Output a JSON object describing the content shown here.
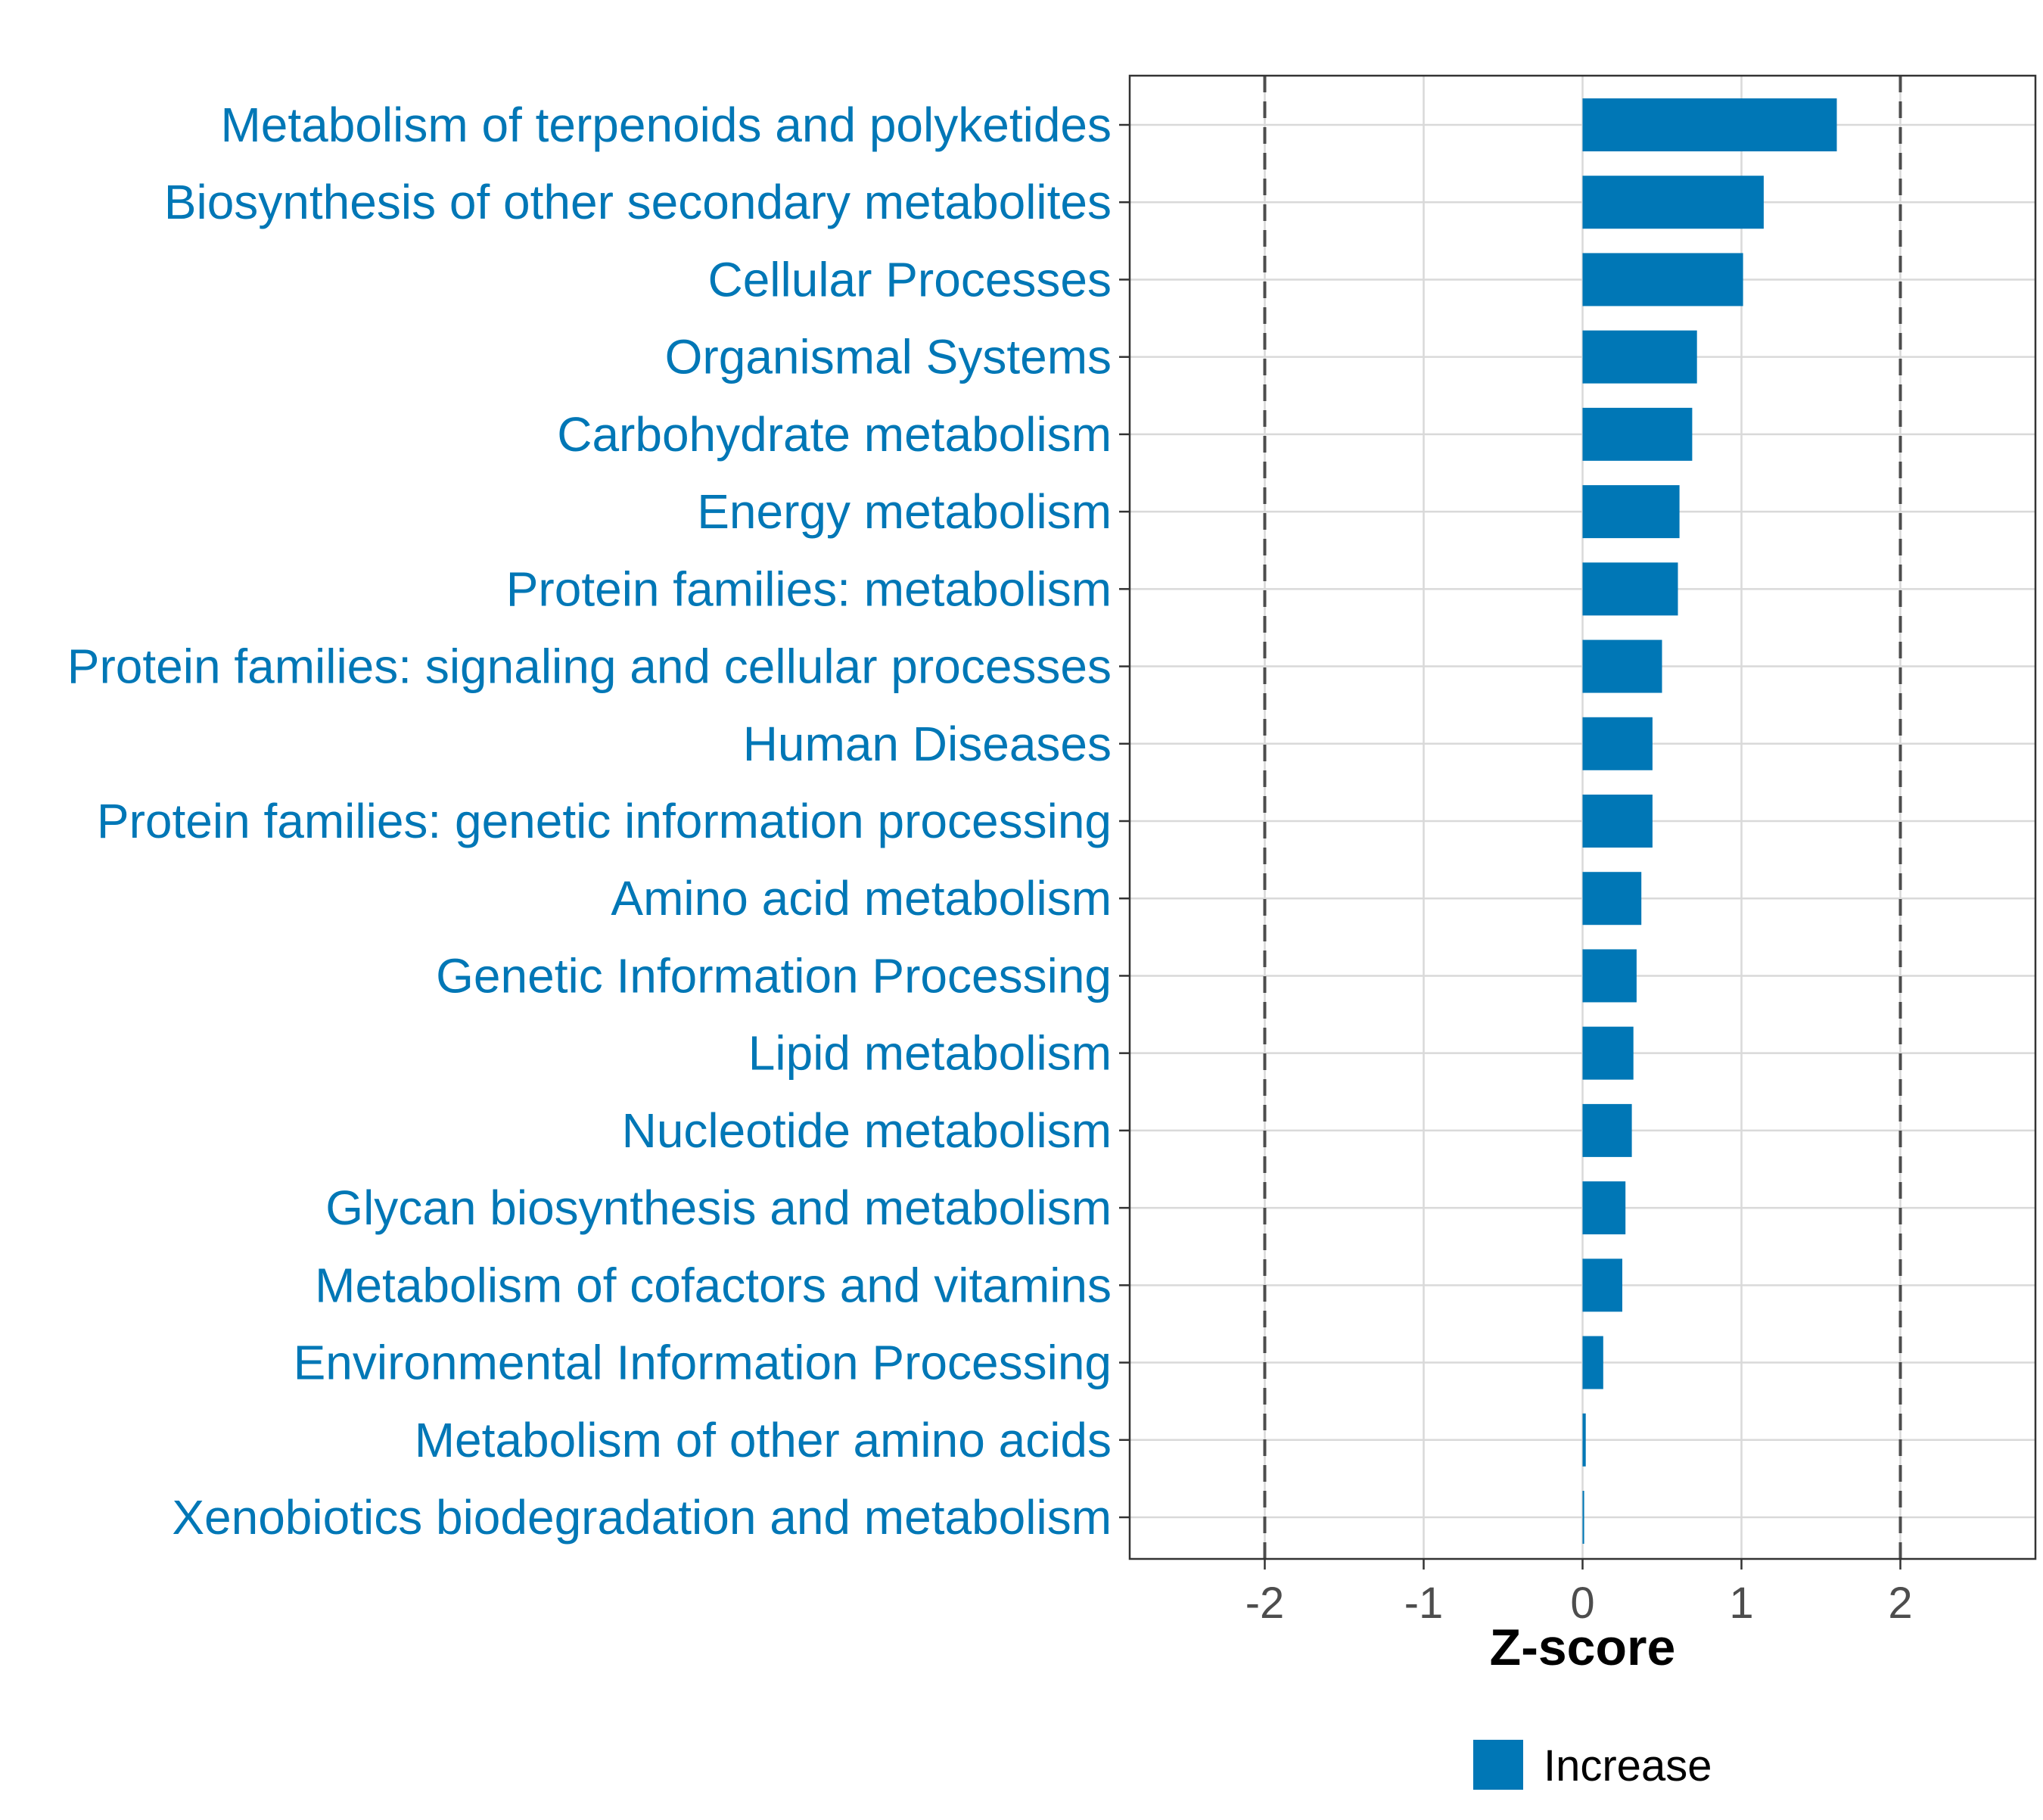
{
  "chart_data": {
    "type": "bar",
    "orientation": "horizontal",
    "categories": [
      "Metabolism of terpenoids and polyketides",
      "Biosynthesis of other secondary metabolites",
      "Cellular Processes",
      "Organismal Systems",
      "Carbohydrate metabolism",
      "Energy metabolism",
      "Protein families: metabolism",
      "Protein families: signaling and cellular processes",
      "Human Diseases",
      "Protein families: genetic information processing",
      "Amino acid metabolism",
      "Genetic Information Processing",
      "Lipid metabolism",
      "Nucleotide metabolism",
      "Glycan biosynthesis and metabolism",
      "Metabolism of cofactors and vitamins",
      "Environmental Information Processing",
      "Metabolism of other amino acids",
      "Xenobiotics biodegradation and metabolism"
    ],
    "values": [
      1.6,
      1.14,
      1.01,
      0.72,
      0.69,
      0.61,
      0.6,
      0.5,
      0.44,
      0.44,
      0.37,
      0.34,
      0.32,
      0.31,
      0.27,
      0.25,
      0.13,
      0.02,
      0.01
    ],
    "series_name": "Increase",
    "xlabel": "Z-score",
    "ylabel": "",
    "xlim": [
      -2.85,
      2.85
    ],
    "xticks": [
      -2,
      -1,
      0,
      1,
      2
    ],
    "xtick_labels": [
      "-2",
      "-1",
      "0",
      "1",
      "2"
    ],
    "reference_lines": [
      -2,
      2
    ],
    "grid": true,
    "legend": {
      "position": "bottom",
      "label": "Increase"
    },
    "colors": {
      "bar": "#0077b6",
      "label": "#0077b6",
      "grid": "#d9d9d9",
      "reference_line": "#4d4d4d",
      "panel_border": "#333333"
    }
  }
}
